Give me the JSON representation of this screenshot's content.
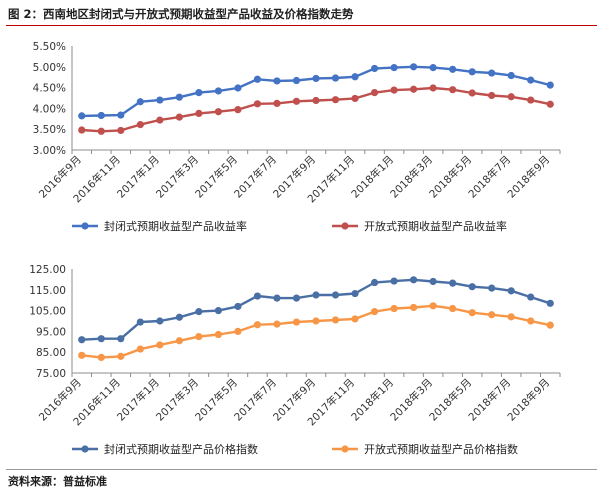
{
  "figure": {
    "title": "图 2：西南地区封闭式与开放式预期收益型产品收益及价格指数走势",
    "source": "资料来源：普益标准"
  },
  "chart_data": [
    {
      "type": "line",
      "x": [
        "2016年9月",
        "2016年10月",
        "2016年11月",
        "2016年12月",
        "2017年1月",
        "2017年2月",
        "2017年3月",
        "2017年4月",
        "2017年5月",
        "2017年6月",
        "2017年7月",
        "2017年8月",
        "2017年9月",
        "2017年10月",
        "2017年11月",
        "2017年12月",
        "2018年1月",
        "2018年2月",
        "2018年3月",
        "2018年4月",
        "2018年5月",
        "2018年6月",
        "2018年7月",
        "2018年8月",
        "2018年9月"
      ],
      "x_tick_labels": [
        "2016年9月",
        "2016年11月",
        "2017年1月",
        "2017年3月",
        "2017年5月",
        "2017年7月",
        "2017年9月",
        "2017年11月",
        "2018年1月",
        "2018年3月",
        "2018年5月",
        "2018年7月",
        "2018年9月"
      ],
      "y_tick_labels": [
        "3.00%",
        "3.50%",
        "4.00%",
        "4.50%",
        "5.00%",
        "5.50%"
      ],
      "ylim": [
        3.0,
        5.5
      ],
      "grid": false,
      "legend_position": "bottom",
      "series": [
        {
          "name": "封闭式预期收益型产品收益率",
          "color": "#4472c4",
          "values": [
            3.82,
            3.83,
            3.84,
            4.16,
            4.2,
            4.27,
            4.38,
            4.42,
            4.49,
            4.7,
            4.66,
            4.67,
            4.72,
            4.73,
            4.76,
            4.96,
            4.98,
            5.0,
            4.98,
            4.94,
            4.88,
            4.85,
            4.79,
            4.68,
            4.56
          ]
        },
        {
          "name": "开放式预期收益型产品收益率",
          "color": "#c0504d",
          "values": [
            3.48,
            3.45,
            3.47,
            3.61,
            3.72,
            3.79,
            3.88,
            3.92,
            3.97,
            4.11,
            4.12,
            4.17,
            4.19,
            4.21,
            4.24,
            4.38,
            4.44,
            4.46,
            4.49,
            4.45,
            4.37,
            4.31,
            4.28,
            4.2,
            4.1
          ]
        }
      ]
    },
    {
      "type": "line",
      "x": [
        "2016年9月",
        "2016年10月",
        "2016年11月",
        "2016年12月",
        "2017年1月",
        "2017年2月",
        "2017年3月",
        "2017年4月",
        "2017年5月",
        "2017年6月",
        "2017年7月",
        "2017年8月",
        "2017年9月",
        "2017年10月",
        "2017年11月",
        "2017年12月",
        "2018年1月",
        "2018年2月",
        "2018年3月",
        "2018年4月",
        "2018年5月",
        "2018年6月",
        "2018年7月",
        "2018年8月",
        "2018年9月"
      ],
      "x_tick_labels": [
        "2016年9月",
        "2016年11月",
        "2017年1月",
        "2017年3月",
        "2017年5月",
        "2017年7月",
        "2017年9月",
        "2017年11月",
        "2018年1月",
        "2018年3月",
        "2018年5月",
        "2018年7月",
        "2018年9月"
      ],
      "y_tick_labels": [
        "75.00",
        "85.00",
        "95.00",
        "105.00",
        "115.00",
        "125.00"
      ],
      "ylim": [
        75,
        125
      ],
      "grid": false,
      "legend_position": "bottom",
      "series": [
        {
          "name": "封闭式预期收益型产品价格指数",
          "color": "#4a6fa5",
          "values": [
            91.0,
            91.5,
            91.5,
            99.5,
            100.0,
            101.8,
            104.5,
            105.0,
            107.0,
            112.0,
            111.0,
            111.0,
            112.5,
            112.5,
            113.2,
            118.5,
            119.2,
            119.8,
            119.0,
            118.2,
            116.5,
            115.8,
            114.5,
            111.5,
            108.5
          ]
        },
        {
          "name": "开放式预期收益型产品价格指数",
          "color": "#f79646",
          "values": [
            83.5,
            82.5,
            83.0,
            86.5,
            88.5,
            90.5,
            92.5,
            93.5,
            95.0,
            98.2,
            98.5,
            99.5,
            100.0,
            100.5,
            101.0,
            104.5,
            106.0,
            106.5,
            107.3,
            106.0,
            104.0,
            103.0,
            102.0,
            100.0,
            98.0
          ]
        }
      ]
    }
  ]
}
